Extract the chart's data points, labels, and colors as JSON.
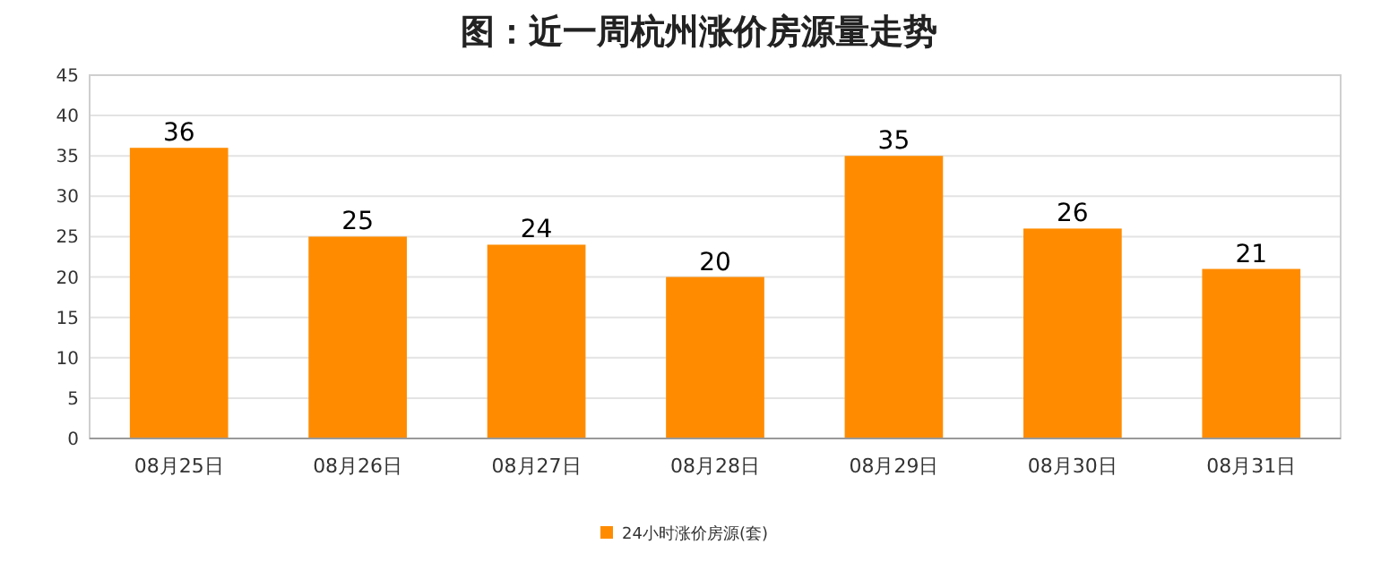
{
  "chart_data": {
    "type": "bar",
    "title": "图：近一周杭州涨价房源量走势",
    "categories": [
      "08月25日",
      "08月26日",
      "08月27日",
      "08月28日",
      "08月29日",
      "08月30日",
      "08月31日"
    ],
    "series": [
      {
        "name": "24小时涨价房源(套)",
        "color": "#ff8c00",
        "values": [
          36,
          25,
          24,
          20,
          35,
          26,
          21
        ]
      }
    ],
    "ylim": [
      0,
      45
    ],
    "yticks": [
      0,
      5,
      10,
      15,
      20,
      25,
      30,
      35,
      40,
      45
    ],
    "grid": "y",
    "legend": "bottom",
    "data_labels": true
  }
}
